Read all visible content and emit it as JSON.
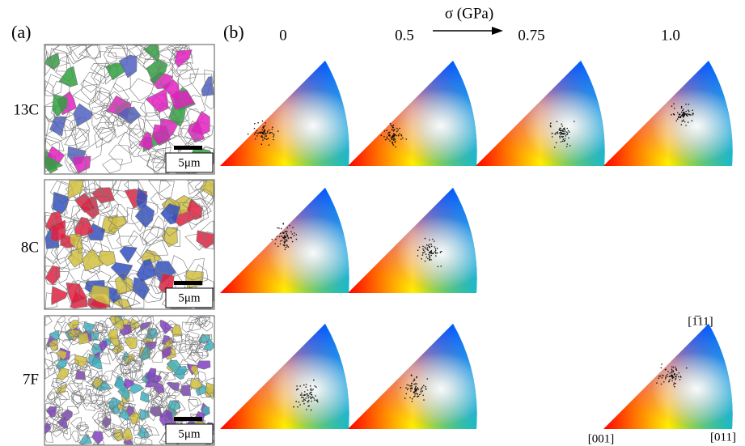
{
  "panels": {
    "a": {
      "label": "(a)",
      "rows": [
        "13C",
        "8C",
        "7F"
      ],
      "scale_bar": [
        "5μm",
        "5μm",
        "5μm"
      ]
    },
    "b": {
      "label": "(b)",
      "axis_label": "σ (GPa)",
      "columns": [
        "0",
        "0.5",
        "0.75",
        "1.0"
      ],
      "corners": [
        "[1̅11]",
        "[001]",
        "[011]"
      ]
    }
  }
}
